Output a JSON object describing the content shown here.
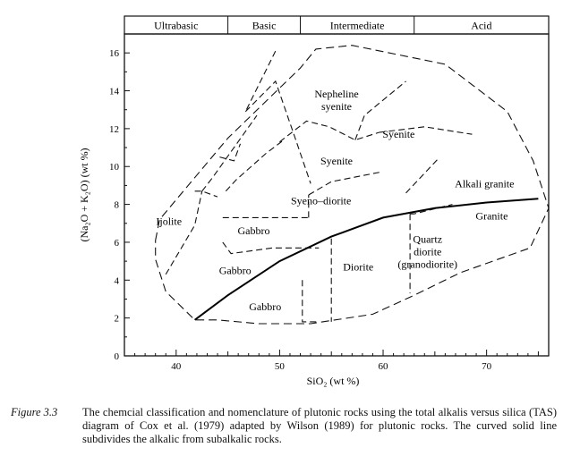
{
  "chart_data": {
    "type": "diagram",
    "xlabel": "SiO₂ (wt %)",
    "ylabel": "(Na₂O + K₂O) (wt %)",
    "xlim": [
      35,
      76
    ],
    "ylim": [
      0,
      17
    ],
    "x_ticks": [
      40,
      50,
      60,
      70
    ],
    "y_ticks": [
      0,
      2,
      4,
      6,
      8,
      10,
      12,
      14,
      16
    ],
    "header_bands": [
      {
        "label": "Ultrabasic",
        "from": 35,
        "to": 45
      },
      {
        "label": "Basic",
        "from": 45,
        "to": 52
      },
      {
        "label": "Intermediate",
        "from": 52,
        "to": 63
      },
      {
        "label": "Acid",
        "from": 63,
        "to": 76
      }
    ],
    "fields": [
      {
        "label": "Nepheline syenite",
        "x": 55.5,
        "y": 13.5
      },
      {
        "label": "Syenite",
        "x": 61.5,
        "y": 11.7
      },
      {
        "label": "Syenite",
        "x": 55.5,
        "y": 10.3
      },
      {
        "label": "Alkali granite",
        "x": 69.8,
        "y": 9.1
      },
      {
        "label": "Syeno–diorite",
        "x": 54.0,
        "y": 8.2
      },
      {
        "label": "Ijolite",
        "x": 39.3,
        "y": 7.1
      },
      {
        "label": "Gabbro",
        "x": 47.5,
        "y": 6.6
      },
      {
        "label": "Granite",
        "x": 70.5,
        "y": 7.4
      },
      {
        "label": "Quartz diorite (granodiorite)",
        "x": 64.3,
        "y": 5.5
      },
      {
        "label": "Diorite",
        "x": 57.6,
        "y": 4.7
      },
      {
        "label": "Gabbro",
        "x": 45.7,
        "y": 4.5
      },
      {
        "label": "Gabbro",
        "x": 48.6,
        "y": 2.6
      }
    ],
    "alkalic_subalkalic_curve": [
      [
        41.8,
        1.9
      ],
      [
        45,
        3.2
      ],
      [
        50,
        5.0
      ],
      [
        55,
        6.3
      ],
      [
        60,
        7.3
      ],
      [
        65,
        7.8
      ],
      [
        70,
        8.1
      ],
      [
        75,
        8.3
      ]
    ],
    "field_boundary_outline": [
      [
        38,
        6.1
      ],
      [
        38.4,
        7.2
      ],
      [
        45,
        11.5
      ],
      [
        52,
        15.2
      ],
      [
        53.5,
        16.2
      ],
      [
        57,
        16.4
      ],
      [
        66,
        15.4
      ],
      [
        72,
        12.9
      ],
      [
        74.5,
        10.3
      ],
      [
        76,
        7.8
      ],
      [
        74.2,
        5.7
      ],
      [
        67.5,
        4.4
      ],
      [
        63,
        3.2
      ],
      [
        59,
        2.2
      ],
      [
        53,
        1.7
      ],
      [
        48,
        1.7
      ],
      [
        44,
        1.9
      ],
      [
        41.8,
        1.9
      ],
      [
        39,
        3.4
      ],
      [
        38,
        5.1
      ],
      [
        38,
        6.1
      ]
    ],
    "dashed_boundaries": [
      [
        [
          39,
          4.3
        ],
        [
          41.8,
          6.9
        ],
        [
          42.5,
          8.7
        ]
      ],
      [
        [
          41.8,
          8.7
        ],
        [
          42.5,
          8.7
        ],
        [
          44,
          8.4
        ]
      ],
      [
        [
          42.5,
          8.7
        ],
        [
          43.5,
          9.4
        ],
        [
          47.8,
          12.7
        ]
      ],
      [
        [
          44.2,
          10.5
        ],
        [
          45.6,
          10.3
        ],
        [
          46.2,
          11.2
        ]
      ],
      [
        [
          44.8,
          8.7
        ],
        [
          45.8,
          9.3
        ],
        [
          48.7,
          10.7
        ],
        [
          50.4,
          11.4
        ]
      ],
      [
        [
          49.6,
          16.1
        ],
        [
          46.7,
          12.9
        ]
      ],
      [
        [
          46.7,
          12.9
        ],
        [
          49.6,
          14.5
        ],
        [
          51.5,
          11.5
        ],
        [
          53,
          9.1
        ]
      ],
      [
        [
          50,
          11.3
        ],
        [
          52.6,
          12.4
        ],
        [
          54.8,
          12.1
        ],
        [
          57.3,
          11.4
        ],
        [
          59.6,
          11.8
        ]
      ],
      [
        [
          57.3,
          11.4
        ],
        [
          58.2,
          12.7
        ],
        [
          62.2,
          14.5
        ]
      ],
      [
        [
          59.6,
          11.8
        ],
        [
          64,
          12.1
        ],
        [
          68.6,
          11.7
        ]
      ],
      [
        [
          62.2,
          8.6
        ],
        [
          65.3,
          10.4
        ]
      ],
      [
        [
          52.8,
          8.5
        ],
        [
          55,
          9.2
        ],
        [
          59.7,
          9.7
        ]
      ],
      [
        [
          44.5,
          7.3
        ],
        [
          45,
          7.3
        ],
        [
          52.8,
          7.3
        ]
      ],
      [
        [
          52.8,
          7.3
        ],
        [
          52.8,
          7.6
        ],
        [
          52.8,
          8.5
        ]
      ],
      [
        [
          44.5,
          6.0
        ],
        [
          45.3,
          5.4
        ],
        [
          49.3,
          5.7
        ],
        [
          53.8,
          5.7
        ]
      ],
      [
        [
          55,
          6.2
        ],
        [
          55,
          1.8
        ]
      ],
      [
        [
          52.2,
          4.0
        ],
        [
          52.2,
          1.8
        ],
        [
          53.7,
          1.8
        ]
      ],
      [
        [
          62.6,
          7.5
        ],
        [
          62.6,
          3.3
        ]
      ],
      [
        [
          62.6,
          7.5
        ],
        [
          63,
          7.5
        ],
        [
          66.7,
          8
        ]
      ]
    ],
    "caption": {
      "figure": "Figure 3.3",
      "text": "The chemcial classification and nomenclature of plutonic rocks using the total alkalis versus silica (TAS) diagram of Cox et al. (1979) adapted by Wilson (1989) for plutonic rocks. The curved solid line subdivides the alkalic from subalkalic rocks."
    }
  }
}
